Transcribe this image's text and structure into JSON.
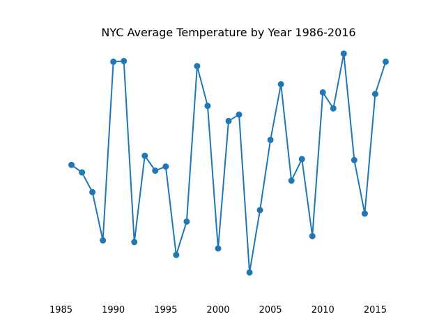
{
  "chart_data": {
    "type": "line",
    "title": "NYC Average Temperature by Year 1986-2016",
    "xlabel": "",
    "ylabel": "",
    "x": [
      1986,
      1987,
      1988,
      1989,
      1990,
      1991,
      1992,
      1993,
      1994,
      1995,
      1996,
      1997,
      1998,
      1999,
      2000,
      2001,
      2002,
      2003,
      2004,
      2005,
      2006,
      2007,
      2008,
      2009,
      2010,
      2011,
      2012,
      2013,
      2014,
      2015,
      2016
    ],
    "series": [
      {
        "values": [
          0.5185,
          0.4865,
          0.4023,
          0.196,
          0.9593,
          0.9622,
          0.1889,
          0.5574,
          0.494,
          0.5117,
          0.134,
          0.2766,
          0.9406,
          0.7708,
          0.1616,
          0.7059,
          0.7335,
          0.0592,
          0.3254,
          0.6253,
          0.8633,
          0.4512,
          0.5433,
          0.2143,
          0.8282,
          0.7598,
          0.9939,
          0.5391,
          0.3104,
          0.8216,
          0.9593
        ],
        "color": "#1f77b4"
      }
    ],
    "xticks": [
      "1985",
      "1990",
      "1995",
      "2000",
      "2005",
      "2010",
      "2015"
    ],
    "xlim": [
      1984.5,
      2017.5
    ],
    "ylim": [
      -0.05,
      1.05
    ],
    "grid": false,
    "axes_visible": false
  }
}
